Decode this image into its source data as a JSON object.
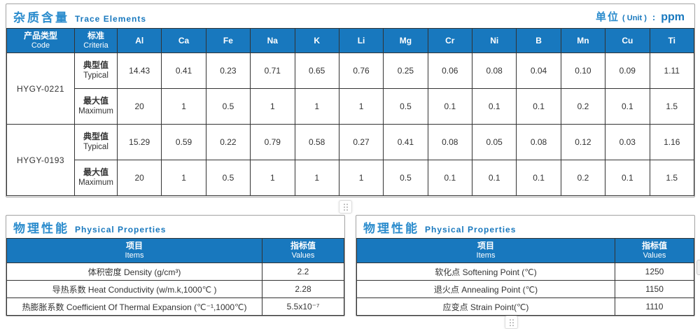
{
  "trace": {
    "title_cn": "杂质含量",
    "title_en": "Trace Elements",
    "unit": {
      "cn": "单位",
      "paren": "( Unit )",
      "colon": ":",
      "value": "ppm"
    },
    "col_code_cn": "产品类型",
    "col_code_en": "Code",
    "col_criteria_cn": "标准",
    "col_criteria_en": "Criteria",
    "elements": [
      "Al",
      "Ca",
      "Fe",
      "Na",
      "K",
      "Li",
      "Mg",
      "Cr",
      "Ni",
      "B",
      "Mn",
      "Cu",
      "Ti"
    ],
    "products": [
      {
        "code": "HYGY-0221",
        "rows": [
          {
            "cn": "典型值",
            "en": "Typical",
            "values": [
              "14.43",
              "0.41",
              "0.23",
              "0.71",
              "0.65",
              "0.76",
              "0.25",
              "0.06",
              "0.08",
              "0.04",
              "0.10",
              "0.09",
              "1.11"
            ]
          },
          {
            "cn": "最大值",
            "en": "Maximum",
            "values": [
              "20",
              "1",
              "0.5",
              "1",
              "1",
              "1",
              "0.5",
              "0.1",
              "0.1",
              "0.1",
              "0.2",
              "0.1",
              "1.5"
            ]
          }
        ]
      },
      {
        "code": "HYGY-0193",
        "rows": [
          {
            "cn": "典型值",
            "en": "Typical",
            "values": [
              "15.29",
              "0.59",
              "0.22",
              "0.79",
              "0.58",
              "0.27",
              "0.41",
              "0.08",
              "0.05",
              "0.08",
              "0.12",
              "0.03",
              "1.16"
            ]
          },
          {
            "cn": "最大值",
            "en": "Maximum",
            "values": [
              "20",
              "1",
              "0.5",
              "1",
              "1",
              "1",
              "0.5",
              "0.1",
              "0.1",
              "0.1",
              "0.2",
              "0.1",
              "1.5"
            ]
          }
        ]
      }
    ]
  },
  "physical_left": {
    "title_cn": "物理性能",
    "title_en": "Physical Properties",
    "col_items_cn": "项目",
    "col_items_en": "Items",
    "col_values_cn": "指标值",
    "col_values_en": "Values",
    "rows": [
      {
        "label": "体积密度 Density (g/cm³)",
        "value": "2.2"
      },
      {
        "label": "导热系数 Heat Conductivity (w/m.k,1000℃ )",
        "value": "2.28"
      },
      {
        "label": "热膨胀系数 Coefficient Of Thermal Expansion (℃⁻¹,1000℃)",
        "value": "5.5x10⁻⁷"
      }
    ]
  },
  "physical_right": {
    "title_cn": "物理性能",
    "title_en": "Physical Properties",
    "col_items_cn": "项目",
    "col_items_en": "Items",
    "col_values_cn": "指标值",
    "col_values_en": "Values",
    "rows": [
      {
        "label": "软化点 Softening Point (℃)",
        "value": "1250"
      },
      {
        "label": "退火点 Annealing Point (℃)",
        "value": "1150"
      },
      {
        "label": "应变点 Strain Point(℃)",
        "value": "1110"
      }
    ]
  },
  "icons": {
    "middle_grip": "grip-dots",
    "bottom_grip": "grip-dots",
    "right_handle": "resize-handle"
  },
  "colors": {
    "header_blue": "#1878be",
    "title_blue": "#2b8ccd",
    "border_dark": "#333333",
    "panel_border": "#a3a3a3"
  }
}
